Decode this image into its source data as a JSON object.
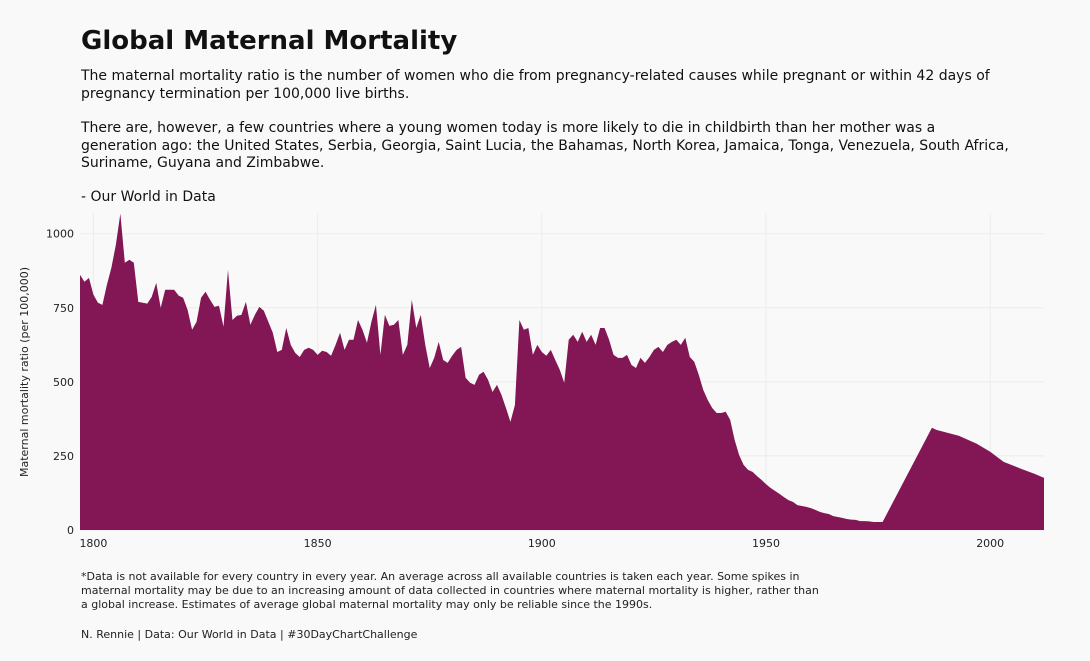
{
  "chart_data": {
    "type": "area",
    "title": "Global Maternal Mortality",
    "subtitle": [
      "The maternal mortality ratio is the number of women who die from pregnancy-related causes while pregnant or within 42 days of pregnancy termination per 100,000 live births.",
      "There are, however, a few countries where a young women today is more likely to die in childbirth than her mother was a generation ago: the United States, Serbia, Georgia, Saint Lucia, the Bahamas, North Korea, Jamaica, Tonga, Venezuela, South Africa, Suriname, Guyana and Zimbabwe.",
      "- Our World in Data"
    ],
    "caption": "*Data is not available for every country in every year. An average across all available countries is taken each year. Some spikes in maternal mortality may be due to an increasing amount of data collected in countries where maternal mortality is higher, rather than a global increase. Estimates of average global maternal mortality may only be reliable since the 1990s.",
    "credit": "N. Rennie | Data: Our World in Data | #30DayChartChallenge",
    "y_label": "Maternal mortality ratio (per 100,000)",
    "color": "#831654",
    "grid": true,
    "xlim": [
      1797,
      2012
    ],
    "xticks": [
      1800,
      1850,
      1900,
      1950,
      2000
    ],
    "ylim": [
      0,
      1070
    ],
    "yticks": [
      0,
      250,
      500,
      750,
      1000
    ],
    "x": [
      1797,
      1798,
      1799,
      1800,
      1801,
      1802,
      1803,
      1804,
      1805,
      1806,
      1807,
      1808,
      1809,
      1810,
      1811,
      1812,
      1813,
      1814,
      1815,
      1816,
      1817,
      1818,
      1819,
      1820,
      1821,
      1822,
      1823,
      1824,
      1825,
      1826,
      1827,
      1828,
      1829,
      1830,
      1831,
      1832,
      1833,
      1834,
      1835,
      1836,
      1837,
      1838,
      1839,
      1840,
      1841,
      1842,
      1843,
      1844,
      1845,
      1846,
      1847,
      1848,
      1849,
      1850,
      1851,
      1852,
      1853,
      1854,
      1855,
      1856,
      1857,
      1858,
      1859,
      1860,
      1861,
      1862,
      1863,
      1864,
      1865,
      1866,
      1867,
      1868,
      1869,
      1870,
      1871,
      1872,
      1873,
      1874,
      1875,
      1876,
      1877,
      1878,
      1879,
      1880,
      1881,
      1882,
      1883,
      1884,
      1885,
      1886,
      1887,
      1888,
      1889,
      1890,
      1891,
      1892,
      1893,
      1894,
      1895,
      1896,
      1897,
      1898,
      1899,
      1900,
      1901,
      1902,
      1903,
      1904,
      1905,
      1906,
      1907,
      1908,
      1909,
      1910,
      1911,
      1912,
      1913,
      1914,
      1915,
      1916,
      1917,
      1918,
      1919,
      1920,
      1921,
      1922,
      1923,
      1924,
      1925,
      1926,
      1927,
      1928,
      1929,
      1930,
      1931,
      1932,
      1933,
      1934,
      1935,
      1936,
      1937,
      1938,
      1939,
      1940,
      1941,
      1942,
      1943,
      1944,
      1945,
      1946,
      1947,
      1948,
      1949,
      1950,
      1951,
      1952,
      1953,
      1954,
      1955,
      1956,
      1957,
      1958,
      1959,
      1960,
      1961,
      1962,
      1963,
      1964,
      1965,
      1966,
      1967,
      1968,
      1969,
      1970,
      1971,
      1972,
      1973,
      1974,
      1975,
      1976,
      1987,
      1988,
      1990,
      1993,
      1997,
      2000,
      2003,
      2007,
      2010,
      2012
    ],
    "values": [
      861,
      838,
      851,
      794,
      767,
      760,
      828,
      885,
      963,
      1068,
      902,
      912,
      902,
      770,
      767,
      764,
      787,
      834,
      750,
      811,
      811,
      811,
      791,
      784,
      743,
      676,
      703,
      784,
      804,
      777,
      753,
      757,
      686,
      878,
      709,
      723,
      726,
      770,
      693,
      726,
      753,
      740,
      703,
      666,
      601,
      608,
      682,
      625,
      598,
      584,
      608,
      615,
      608,
      591,
      605,
      601,
      588,
      625,
      666,
      608,
      642,
      642,
      709,
      676,
      632,
      703,
      760,
      591,
      726,
      689,
      693,
      709,
      591,
      625,
      777,
      682,
      726,
      625,
      547,
      581,
      635,
      574,
      564,
      588,
      608,
      618,
      514,
      497,
      490,
      524,
      534,
      507,
      466,
      490,
      456,
      412,
      365,
      422,
      709,
      676,
      682,
      591,
      625,
      601,
      588,
      608,
      574,
      541,
      497,
      642,
      659,
      635,
      669,
      635,
      659,
      625,
      682,
      682,
      642,
      591,
      581,
      581,
      591,
      557,
      547,
      581,
      564,
      584,
      608,
      618,
      601,
      625,
      635,
      642,
      625,
      649,
      584,
      568,
      524,
      473,
      439,
      412,
      395,
      395,
      399,
      372,
      304,
      253,
      220,
      203,
      196,
      182,
      169,
      155,
      142,
      132,
      122,
      111,
      101,
      95,
      84,
      81,
      78,
      74,
      68,
      61,
      57,
      54,
      47,
      44,
      41,
      37,
      35,
      34,
      30,
      30,
      29,
      27,
      27,
      27,
      345,
      338,
      330,
      318,
      291,
      264,
      230,
      206,
      189,
      176
    ]
  }
}
